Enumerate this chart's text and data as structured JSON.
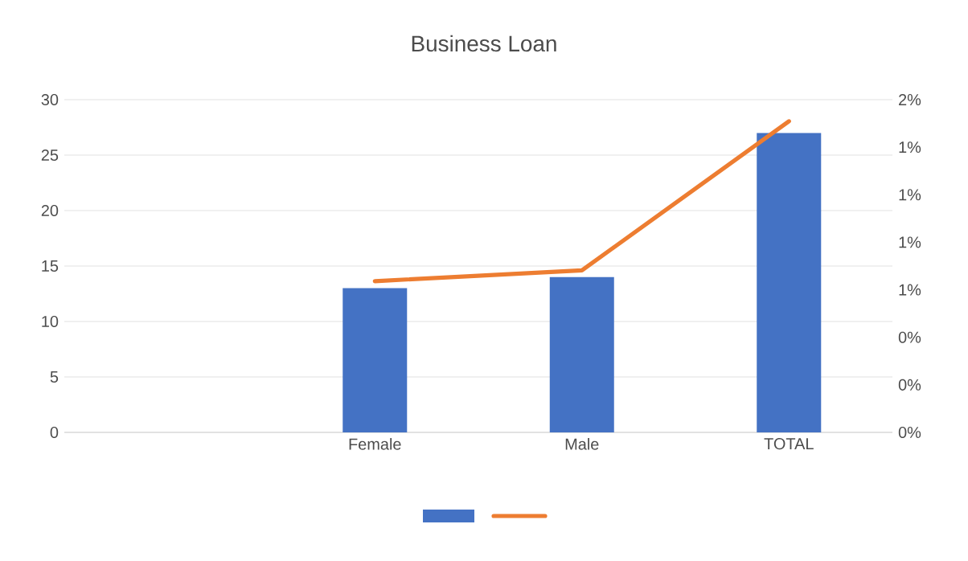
{
  "chart_data": {
    "type": "bar",
    "title": "Business Loan",
    "categories": [
      null,
      "Female",
      "Male",
      "TOTAL"
    ],
    "series": [
      {
        "color": "#4472c4",
        "values": [
          null,
          13,
          14,
          27
        ]
      },
      {
        "type": "line",
        "axis": "y2",
        "color": "#ed7d31",
        "values": [
          null,
          0.7,
          0.75,
          1.44
        ]
      }
    ],
    "ylim": [
      0,
      30
    ],
    "yticks": [
      0,
      5,
      10,
      15,
      20,
      25,
      30
    ],
    "y2lim": [
      0,
      1.54
    ],
    "y2ticks": [
      {
        "value": 0,
        "label": "0%"
      },
      {
        "value": 0.22,
        "label": "0%"
      },
      {
        "value": 0.44,
        "label": "0%"
      },
      {
        "value": 0.66,
        "label": "1%"
      },
      {
        "value": 0.88,
        "label": "1%"
      },
      {
        "value": 1.1,
        "label": "1%"
      },
      {
        "value": 1.32,
        "label": "1%"
      },
      {
        "value": 1.54,
        "label": "2%"
      }
    ],
    "grid": "y",
    "marker": "none"
  }
}
